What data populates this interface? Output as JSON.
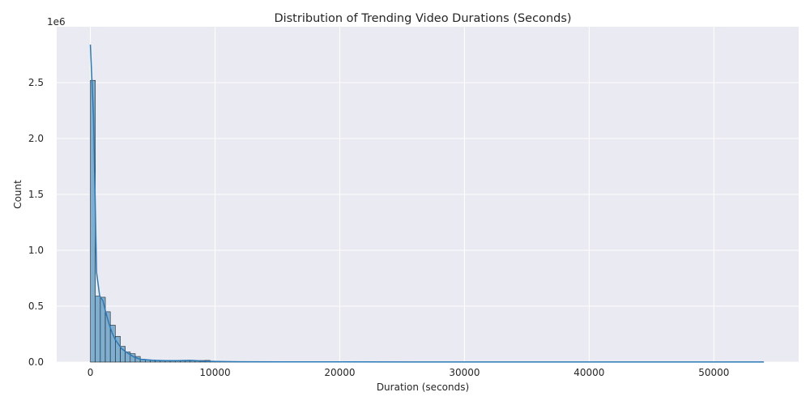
{
  "chart_data": {
    "type": "bar",
    "subtype": "histogram-with-kde",
    "title": "Distribution of Trending Video Durations (Seconds)",
    "xlabel": "Duration (seconds)",
    "ylabel": "Count",
    "y_scale_note": "1e6",
    "xlim": [
      -2700,
      56800
    ],
    "ylim": [
      0,
      3.0
    ],
    "x_ticks": [
      0,
      10000,
      20000,
      30000,
      40000,
      50000
    ],
    "x_tick_labels": [
      "0",
      "10000",
      "20000",
      "30000",
      "40000",
      "50000"
    ],
    "y_ticks": [
      0.0,
      0.5,
      1.0,
      1.5,
      2.0,
      2.5
    ],
    "y_tick_labels": [
      "0.0",
      "0.5",
      "1.0",
      "1.5",
      "2.0",
      "2.5"
    ],
    "grid": true,
    "bin_width": 400,
    "bins_start": 0,
    "bins_end": 54000,
    "counts_millions": [
      2.52,
      0.59,
      0.58,
      0.45,
      0.33,
      0.23,
      0.14,
      0.09,
      0.075,
      0.05,
      0.025,
      0.02,
      0.018,
      0.015,
      0.015,
      0.013,
      0.012,
      0.012,
      0.012,
      0.012,
      0.012,
      0.013,
      0.014,
      0.015,
      0.009,
      0.006,
      0.005,
      0.004,
      0.004,
      0.004,
      0.003,
      0.003,
      0.003,
      0.003,
      0.002,
      0.002,
      0.002,
      0.002,
      0.002,
      0.002,
      0.002,
      0.002
    ],
    "tail_count_millions": 0.001,
    "kde_x": [
      0,
      250,
      500,
      750,
      1000,
      1250,
      1500,
      1750,
      2000,
      2500,
      3000,
      3500,
      4000,
      5000,
      6000,
      7000,
      8000,
      8500,
      9000,
      10000,
      12000,
      15000,
      20000,
      30000,
      40000,
      54000
    ],
    "kde_y_millions": [
      2.84,
      2.2,
      0.8,
      0.59,
      0.55,
      0.44,
      0.34,
      0.26,
      0.2,
      0.12,
      0.08,
      0.045,
      0.025,
      0.016,
      0.013,
      0.013,
      0.015,
      0.013,
      0.008,
      0.005,
      0.003,
      0.002,
      0.0015,
      0.0012,
      0.001,
      0.001
    ],
    "colors": {
      "bar_fill": "#7fafd0",
      "bar_edge": "#1f1f1f",
      "kde_line": "#2a7ab8",
      "plot_bg": "#eaeaf2",
      "grid": "#ffffff"
    }
  }
}
